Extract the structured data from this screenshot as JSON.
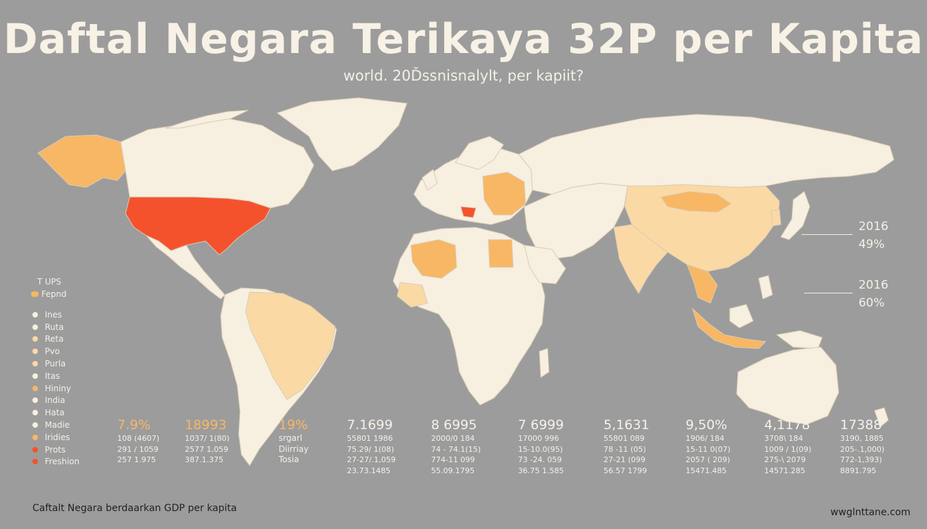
{
  "title": "Daftal Negara Terikaya 32P per Kapita",
  "subtitle": "world. 20Ďssnisnalylt, per kapiit?",
  "colors": {
    "background": "#9c9c9c",
    "land": "#f7efdf",
    "light_orange": "#fbd9a5",
    "orange": "#f8b764",
    "red": "#f4522d"
  },
  "legend": {
    "title": "T UPS",
    "header": {
      "label": "Fepnd",
      "color": "#f8b764"
    },
    "items": [
      {
        "label": "Ines",
        "color": "#f7efdf"
      },
      {
        "label": "Ruta",
        "color": "#f7efdf"
      },
      {
        "label": "Reta",
        "color": "#fbd9a5"
      },
      {
        "label": "Pvo",
        "color": "#fbd9a5"
      },
      {
        "label": "Purla",
        "color": "#fbd9a5"
      },
      {
        "label": "Itas",
        "color": "#f7efdf"
      },
      {
        "label": "Hininy",
        "color": "#f8b764"
      },
      {
        "label": "India",
        "color": "#f7efdf"
      },
      {
        "label": "Hata",
        "color": "#f7efdf"
      },
      {
        "label": "Madie",
        "color": "#f7efdf"
      },
      {
        "label": "Iridies",
        "color": "#f8b764"
      },
      {
        "label": "Prots",
        "color": "#f4522d"
      },
      {
        "label": "Freshion",
        "color": "#f4522d"
      }
    ]
  },
  "side_labels": [
    {
      "year": "2016",
      "value": "49%"
    },
    {
      "year": "2016",
      "value": "60%"
    }
  ],
  "stats": [
    {
      "big": "7.9%",
      "color": "#f8b764",
      "lines": [
        "108 (4607)",
        "291 / 1059",
        "257 1.975"
      ]
    },
    {
      "big": "18993",
      "color": "#f8b764",
      "lines": [
        "1037/ 1(80)",
        "2577 1,059",
        "387.1.375"
      ]
    },
    {
      "big": "19%",
      "color": "#f8b764",
      "lines": [
        "srgarl",
        "Diirriay",
        "Tosia"
      ]
    },
    {
      "big": "7.1699",
      "color": "#f6f1e9",
      "lines": [
        "55801 1986",
        "75.29/ 1(08)",
        "27-27/.1,059",
        "23.73.1485"
      ]
    },
    {
      "big": "8 6995",
      "color": "#f6f1e9",
      "lines": [
        "2000/0 184",
        "74 - 74.1(15)",
        "774-11 099",
        "55.09.1795"
      ]
    },
    {
      "big": "7 6999",
      "color": "#f6f1e9",
      "lines": [
        "17000 996",
        "15-10.0(95)",
        "73 -24. 059",
        "36.75 1.585"
      ]
    },
    {
      "big": "5,1631",
      "color": "#f6f1e9",
      "lines": [
        "55801 089",
        "78 -11 (05)",
        "27-21 (099",
        "56.57 1799"
      ]
    },
    {
      "big": "9,50%",
      "color": "#f6f1e9",
      "lines": [
        "1906/ 184",
        "15-11 0(07)",
        "2057 ( 209)",
        "15471.485"
      ]
    },
    {
      "big": "4,1178",
      "color": "#f6f1e9",
      "lines": [
        "3708\\ 184",
        "1009 / 1(09)",
        "275-\\ 2079",
        "14571.285"
      ]
    },
    {
      "big": "17388",
      "color": "#f6f1e9",
      "lines": [
        "3190, 1885",
        "205-.1,000)",
        "772-1,393)",
        "8891.795"
      ]
    }
  ],
  "footer_left": "Caftalt Negara berdaarkan GDP per kapita",
  "footer_right": "wwglnttane.com"
}
